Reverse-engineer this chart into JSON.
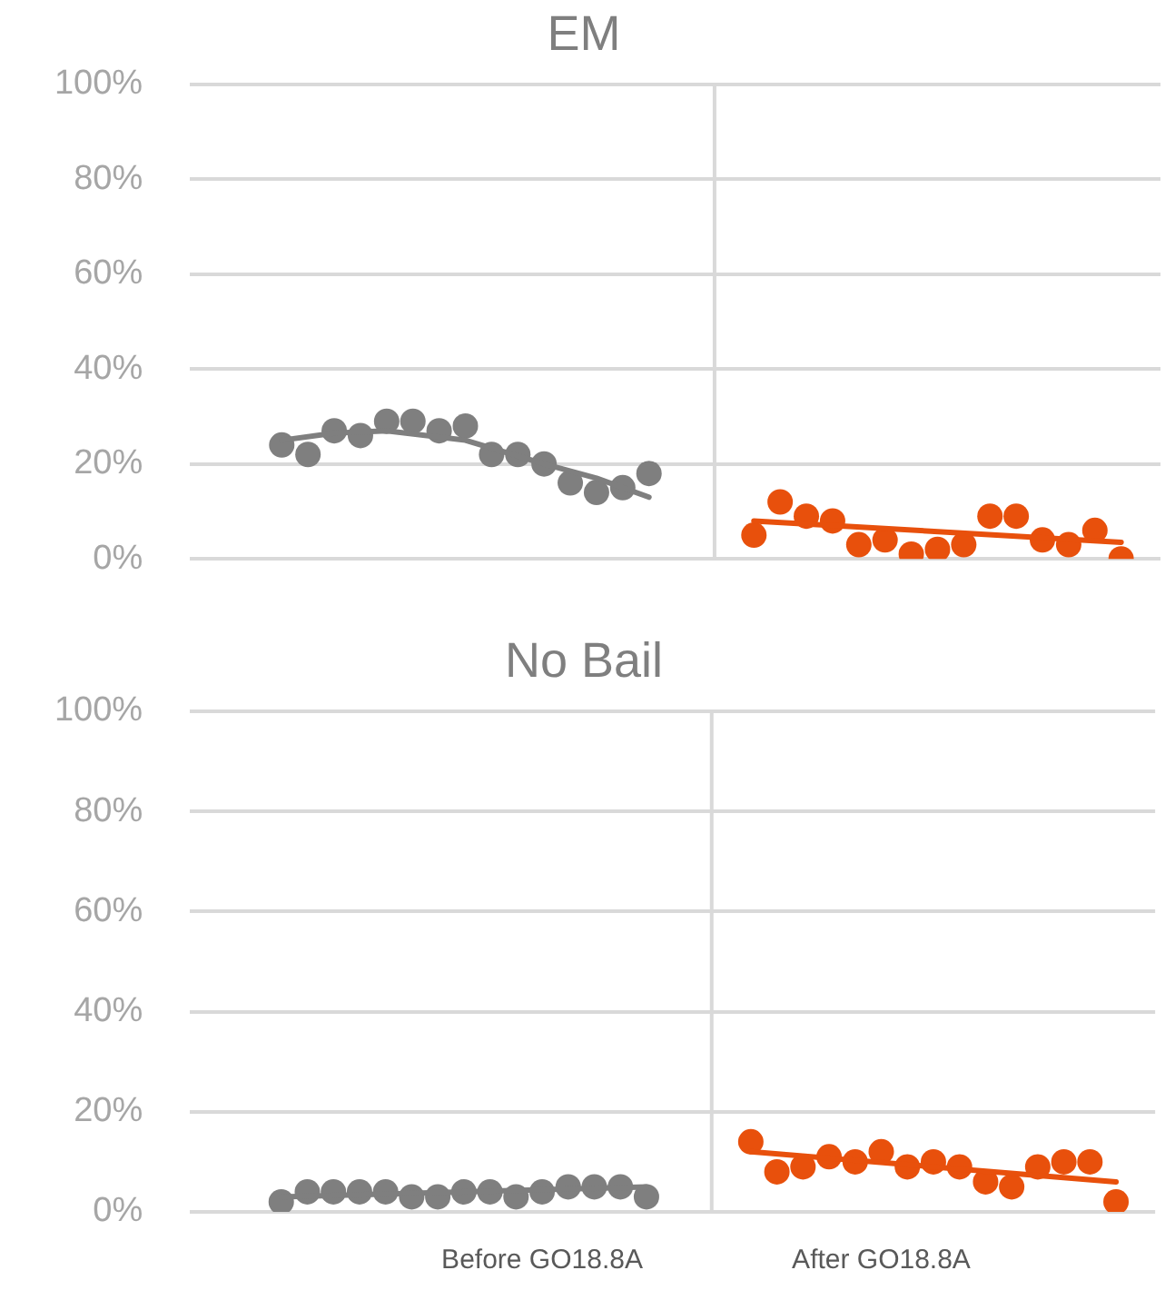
{
  "chart_data": [
    {
      "type": "scatter",
      "title": "EM",
      "ylim": [
        0,
        100
      ],
      "categories": [
        null,
        null,
        null,
        null,
        null,
        null,
        null,
        null,
        null,
        null,
        null,
        null,
        null,
        null,
        null,
        null,
        null,
        null,
        null,
        null,
        null,
        null,
        null,
        null,
        null,
        null,
        null,
        null,
        null,
        null,
        null,
        null,
        null,
        null,
        null,
        null,
        null
      ],
      "yticks": [
        {
          "value": 0,
          "label": "0%"
        },
        {
          "value": 20,
          "label": "20%"
        },
        {
          "value": 40,
          "label": "40%"
        },
        {
          "value": 60,
          "label": "60%"
        },
        {
          "value": 80,
          "label": "80%"
        },
        {
          "value": 100,
          "label": "100%"
        }
      ],
      "tick_labels": "y",
      "grid": "y",
      "marker": "circle",
      "series": [
        {
          "type": "scatter",
          "color": "#7f7f7f",
          "values": [
            null,
            null,
            null,
            24,
            22,
            27,
            26,
            29,
            29,
            27,
            28,
            22,
            22,
            20,
            16,
            14,
            15,
            18,
            null,
            null,
            null,
            null,
            null,
            null,
            null,
            null,
            null,
            null,
            null,
            null,
            null,
            null,
            null,
            null,
            null,
            null,
            null
          ]
        },
        {
          "type": "scatter",
          "color": "#e8500c",
          "values": [
            null,
            null,
            null,
            null,
            null,
            null,
            null,
            null,
            null,
            null,
            null,
            null,
            null,
            null,
            null,
            null,
            null,
            null,
            null,
            null,
            null,
            5,
            12,
            9,
            8,
            3,
            4,
            1,
            2,
            3,
            9,
            9,
            4,
            3,
            6,
            0,
            null
          ]
        },
        {
          "type": "line",
          "marker": "none",
          "color": "#7f7f7f",
          "values": [
            null,
            null,
            null,
            25,
            null,
            26.5,
            null,
            27,
            null,
            null,
            25,
            null,
            null,
            20,
            null,
            17,
            null,
            13,
            null,
            null,
            null,
            null,
            null,
            null,
            null,
            null,
            null,
            null,
            null,
            null,
            null,
            null,
            null,
            null,
            null,
            null,
            null
          ]
        },
        {
          "type": "line",
          "marker": "none",
          "color": "#e8500c",
          "values": [
            null,
            null,
            null,
            null,
            null,
            null,
            null,
            null,
            null,
            null,
            null,
            null,
            null,
            null,
            null,
            null,
            null,
            null,
            null,
            null,
            null,
            8,
            null,
            null,
            null,
            null,
            null,
            null,
            null,
            null,
            null,
            null,
            null,
            null,
            null,
            3.5,
            null
          ]
        }
      ]
    },
    {
      "type": "scatter",
      "title": "No Bail",
      "ylim": [
        0,
        100
      ],
      "categories": [
        null,
        null,
        null,
        null,
        null,
        null,
        null,
        null,
        null,
        null,
        null,
        null,
        null,
        "Before GO18.8A",
        null,
        null,
        null,
        null,
        null,
        null,
        null,
        null,
        null,
        null,
        null,
        null,
        "After GO18.8A",
        null,
        null,
        null,
        null,
        null,
        null,
        null,
        null,
        null,
        null
      ],
      "yticks": [
        {
          "value": 0,
          "label": "0%"
        },
        {
          "value": 20,
          "label": "20%"
        },
        {
          "value": 40,
          "label": "40%"
        },
        {
          "value": 60,
          "label": "60%"
        },
        {
          "value": 80,
          "label": "80%"
        },
        {
          "value": 100,
          "label": "100%"
        }
      ],
      "grid": "y",
      "marker": "circle",
      "series": [
        {
          "type": "scatter",
          "color": "#7f7f7f",
          "values": [
            null,
            null,
            null,
            2,
            4,
            4,
            4,
            4,
            3,
            3,
            4,
            4,
            3,
            4,
            5,
            5,
            5,
            3,
            null,
            null,
            null,
            null,
            null,
            null,
            null,
            null,
            null,
            null,
            null,
            null,
            null,
            null,
            null,
            null,
            null,
            null,
            null
          ]
        },
        {
          "type": "scatter",
          "color": "#e8500c",
          "values": [
            null,
            null,
            null,
            null,
            null,
            null,
            null,
            null,
            null,
            null,
            null,
            null,
            null,
            null,
            null,
            null,
            null,
            null,
            null,
            null,
            null,
            14,
            8,
            9,
            11,
            10,
            12,
            9,
            10,
            9,
            6,
            5,
            9,
            10,
            10,
            2,
            null
          ]
        },
        {
          "type": "line",
          "marker": "none",
          "color": "#7f7f7f",
          "values": [
            null,
            null,
            null,
            3,
            null,
            null,
            null,
            null,
            null,
            null,
            null,
            null,
            null,
            null,
            null,
            null,
            null,
            5,
            null,
            null,
            null,
            null,
            null,
            null,
            null,
            null,
            null,
            null,
            null,
            null,
            null,
            null,
            null,
            null,
            null,
            null,
            null
          ]
        },
        {
          "type": "line",
          "marker": "none",
          "color": "#e8500c",
          "values": [
            null,
            null,
            null,
            null,
            null,
            null,
            null,
            null,
            null,
            null,
            null,
            null,
            null,
            null,
            null,
            null,
            null,
            null,
            null,
            null,
            null,
            12,
            null,
            null,
            null,
            null,
            null,
            null,
            null,
            null,
            null,
            null,
            null,
            null,
            null,
            6,
            null
          ]
        }
      ]
    }
  ]
}
